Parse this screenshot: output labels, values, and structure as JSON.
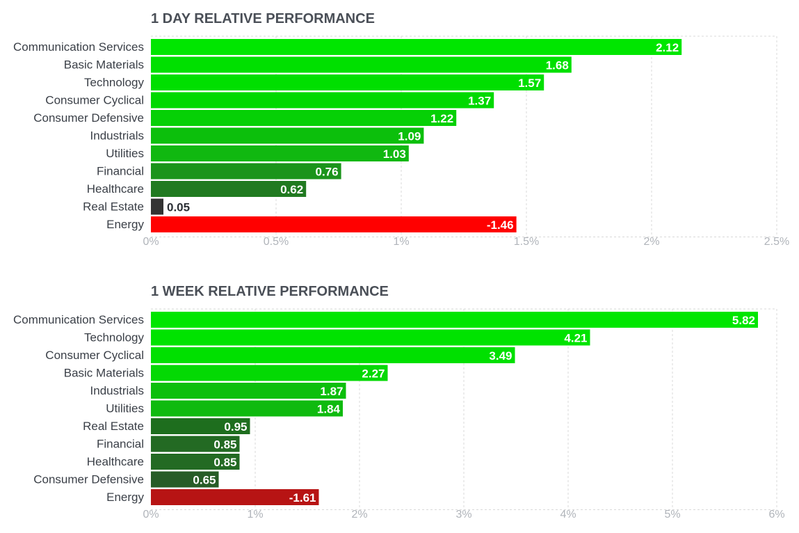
{
  "chart_data": [
    {
      "type": "bar",
      "orientation": "horizontal",
      "title": "1 DAY RELATIVE PERFORMANCE",
      "categories": [
        "Communication Services",
        "Basic Materials",
        "Technology",
        "Consumer Cyclical",
        "Consumer Defensive",
        "Industrials",
        "Utilities",
        "Financial",
        "Healthcare",
        "Real Estate",
        "Energy"
      ],
      "values": [
        2.12,
        1.68,
        1.57,
        1.37,
        1.22,
        1.09,
        1.03,
        0.76,
        0.62,
        0.05,
        -1.46
      ],
      "value_labels": [
        "2.12",
        "1.68",
        "1.57",
        "1.37",
        "1.22",
        "1.09",
        "1.03",
        "0.76",
        "0.62",
        "0.05",
        "-1.46"
      ],
      "bar_colors": [
        "#00e600",
        "#00e000",
        "#00df00",
        "#00d900",
        "#06d006",
        "#0cbf0c",
        "#10b810",
        "#1b941b",
        "#217a21",
        "#333333",
        "#ff0000"
      ],
      "xlim": [
        0,
        2.5
      ],
      "xticks": [
        0,
        0.5,
        1,
        1.5,
        2,
        2.5
      ],
      "xtick_labels": [
        "0%",
        "0.5%",
        "1%",
        "1.5%",
        "2%",
        "2.5%"
      ],
      "grid": true,
      "note_negative": "negative values drawn by magnitude in red"
    },
    {
      "type": "bar",
      "orientation": "horizontal",
      "title": "1 WEEK RELATIVE PERFORMANCE",
      "categories": [
        "Communication Services",
        "Technology",
        "Consumer Cyclical",
        "Basic Materials",
        "Industrials",
        "Utilities",
        "Real Estate",
        "Financial",
        "Healthcare",
        "Consumer Defensive",
        "Energy"
      ],
      "values": [
        5.82,
        4.21,
        3.49,
        2.27,
        1.87,
        1.84,
        0.95,
        0.85,
        0.85,
        0.65,
        -1.61
      ],
      "value_labels": [
        "5.82",
        "4.21",
        "3.49",
        "2.27",
        "1.87",
        "1.84",
        "0.95",
        "0.85",
        "0.85",
        "0.65",
        "-1.61"
      ],
      "bar_colors": [
        "#00e600",
        "#00e300",
        "#00e000",
        "#04d904",
        "#0cbf0c",
        "#0fba0f",
        "#1e6e1e",
        "#236a23",
        "#236a23",
        "#275c27",
        "#b71414"
      ],
      "xlim": [
        0,
        6
      ],
      "xticks": [
        0,
        1,
        2,
        3,
        4,
        5,
        6
      ],
      "xtick_labels": [
        "0%",
        "1%",
        "2%",
        "3%",
        "4%",
        "5%",
        "6%"
      ],
      "grid": true
    }
  ]
}
